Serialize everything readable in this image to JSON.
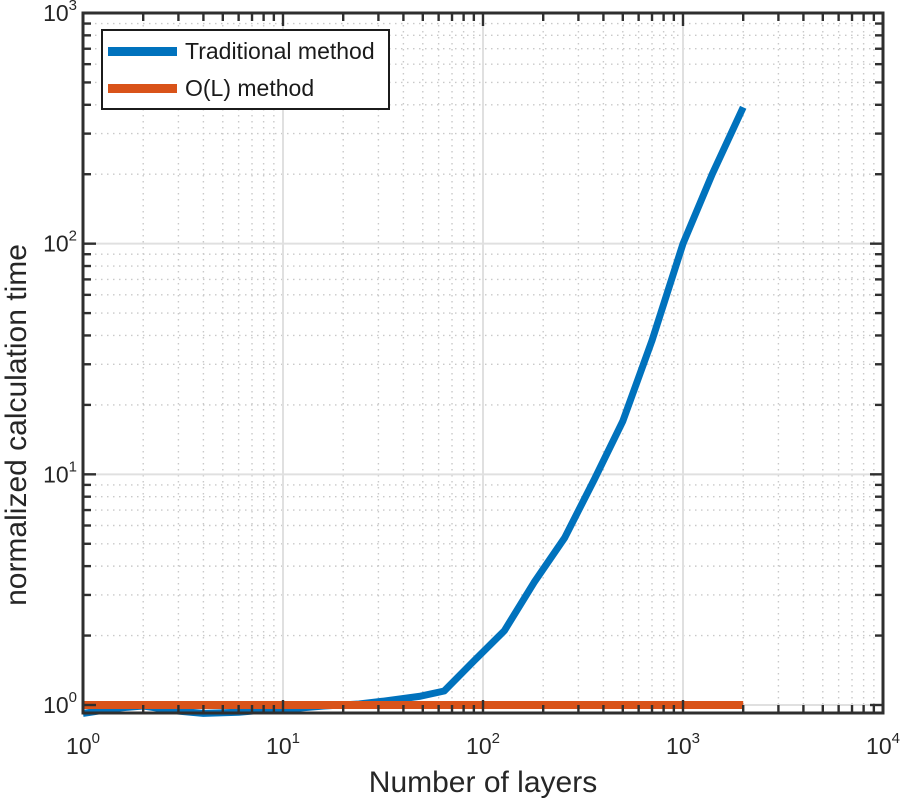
{
  "chart_data": {
    "type": "line",
    "title": "",
    "xlabel": "Number of layers",
    "ylabel": "normalized calculation time",
    "x_scale": "log",
    "y_scale": "log",
    "xlim": [
      1,
      10000
    ],
    "ylim": [
      0.92,
      1000
    ],
    "tick_base": "10",
    "x_tick_exponents": [
      0,
      1,
      2,
      3,
      4
    ],
    "y_tick_exponents": [
      0,
      1,
      2,
      3
    ],
    "grid": "major solid + minor dotted, both axes",
    "legend_position": "top-left",
    "series": [
      {
        "name": "Traditional method",
        "color": "#0072BD",
        "stroke_width": 7,
        "x": [
          1,
          1.5,
          2,
          3,
          4,
          6,
          8,
          12,
          16,
          24,
          32,
          48,
          64,
          90,
          128,
          180,
          256,
          360,
          500,
          700,
          1000,
          1400,
          2000
        ],
        "y": [
          0.92,
          0.97,
          0.99,
          0.94,
          0.92,
          0.93,
          0.95,
          0.97,
          0.99,
          1.01,
          1.04,
          1.09,
          1.15,
          1.55,
          2.1,
          3.4,
          5.3,
          9.5,
          17,
          38,
          100,
          200,
          390
        ]
      },
      {
        "name": "O(L) method",
        "color": "#D95319",
        "stroke_width": 8,
        "x": [
          1,
          2000
        ],
        "y": [
          1.0,
          1.0
        ]
      }
    ],
    "colors": {
      "background": "#ffffff",
      "axis": "#2f2f2f",
      "text": "#262626",
      "grid_major": "#e0e0e0",
      "grid_minor": "#c9c9c9"
    }
  }
}
